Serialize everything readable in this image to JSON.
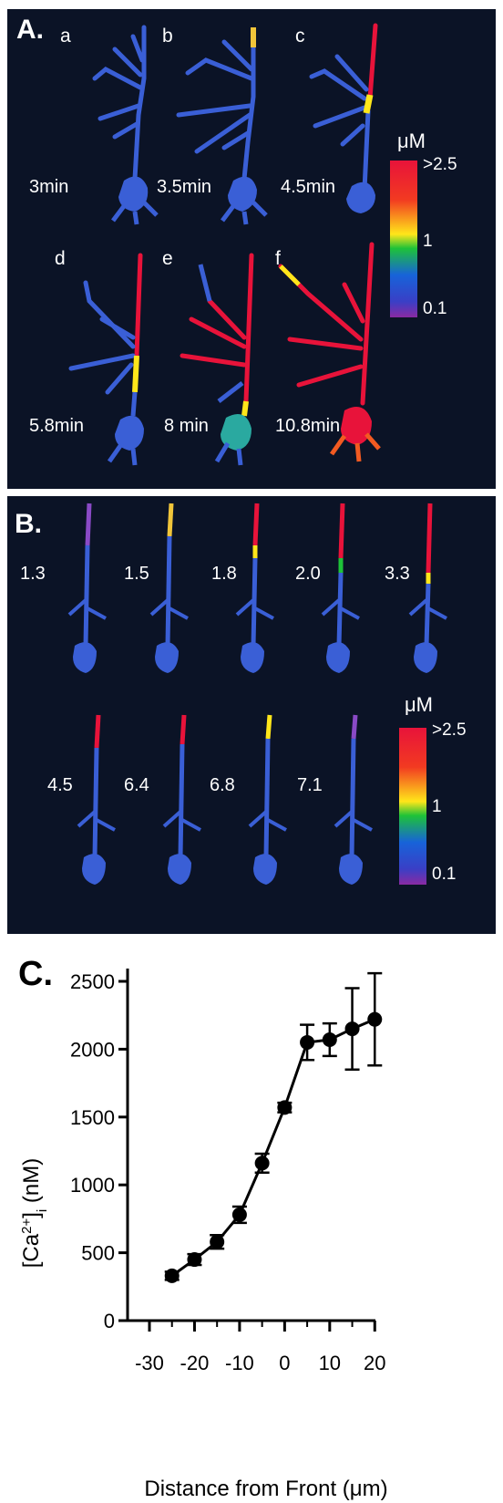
{
  "panel_a": {
    "label": "A.",
    "sub_labels": [
      "a",
      "b",
      "c",
      "d",
      "e",
      "f"
    ],
    "time_labels": [
      "3min",
      "3.5min",
      "4.5min",
      "5.8min",
      "8 min",
      "10.8min"
    ],
    "colorbar": {
      "unit": "μM",
      "ticks": [
        ">2.5",
        "1",
        "0.1"
      ]
    }
  },
  "panel_b": {
    "label": "B.",
    "time_labels": [
      "1.3",
      "1.5",
      "1.8",
      "2.0",
      "3.3",
      "4.5",
      "6.4",
      "6.8",
      "7.1"
    ],
    "colorbar": {
      "unit": "μM",
      "ticks": [
        ">2.5",
        "1",
        "0.1"
      ]
    }
  },
  "colors": {
    "background": "#0b1326",
    "low": "#3a5fd6",
    "mid": "#ffe61a",
    "high": "#e8133a"
  },
  "chart_data": {
    "type": "line",
    "panel_label": "C.",
    "xlabel": "Distance from Front (μm)",
    "ylabel": "[Ca2+]i (nM)",
    "x_ticks": [
      "-30",
      "-20",
      "-10",
      "0",
      "10",
      "20"
    ],
    "y_ticks": [
      "0",
      "500",
      "1000",
      "1500",
      "2000",
      "2500"
    ],
    "x_minor_ticks": [
      -25,
      -15,
      -5,
      5,
      15
    ],
    "xlim": [
      -30,
      25
    ],
    "ylim": [
      0,
      2500
    ],
    "x": [
      -25,
      -20,
      -15,
      -10,
      -5,
      0,
      5,
      10,
      15,
      20
    ],
    "y": [
      330,
      450,
      580,
      780,
      1160,
      1570,
      2050,
      2070,
      2150,
      2220
    ],
    "err": [
      30,
      40,
      50,
      60,
      70,
      35,
      130,
      120,
      300,
      340
    ],
    "grid": false
  }
}
